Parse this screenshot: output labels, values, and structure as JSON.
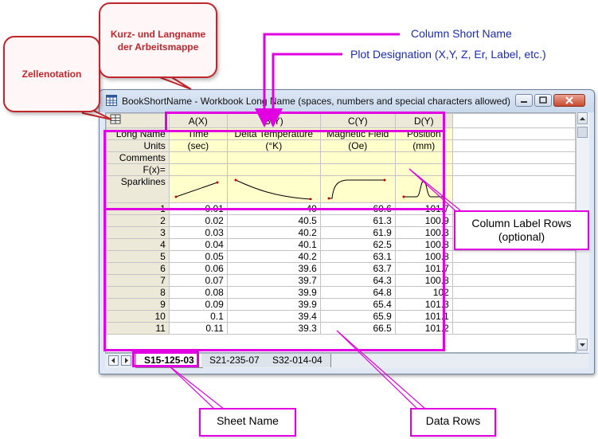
{
  "window": {
    "title": "BookShortName - Workbook Long Name (spaces, numbers and special characters allowed)"
  },
  "grid": {
    "columns": [
      {
        "short_name": "A(X)",
        "long_name": "Time",
        "units": "(sec)"
      },
      {
        "short_name": "B(Y)",
        "long_name": "Delta Temperature",
        "units": "(°K)"
      },
      {
        "short_name": "C(Y)",
        "long_name": "Magnetic Field",
        "units": "(Oe)"
      },
      {
        "short_name": "D(Y)",
        "long_name": "Position",
        "units": "(mm)"
      }
    ],
    "label_rows": [
      "Long Name",
      "Units",
      "Comments",
      "F(x)=",
      "Sparklines"
    ],
    "rows": [
      {
        "n": "1",
        "a": "0.01",
        "b": "40",
        "c": "60.6",
        "d": "101.7"
      },
      {
        "n": "2",
        "a": "0.02",
        "b": "40.5",
        "c": "61.3",
        "d": "100.9"
      },
      {
        "n": "3",
        "a": "0.03",
        "b": "40.2",
        "c": "61.9",
        "d": "100.3"
      },
      {
        "n": "4",
        "a": "0.04",
        "b": "40.1",
        "c": "62.5",
        "d": "100.8"
      },
      {
        "n": "5",
        "a": "0.05",
        "b": "40.2",
        "c": "63.1",
        "d": "100.8"
      },
      {
        "n": "6",
        "a": "0.06",
        "b": "39.6",
        "c": "63.7",
        "d": "101.7"
      },
      {
        "n": "7",
        "a": "0.07",
        "b": "39.7",
        "c": "64.3",
        "d": "100.8"
      },
      {
        "n": "8",
        "a": "0.08",
        "b": "39.9",
        "c": "64.8",
        "d": "102"
      },
      {
        "n": "9",
        "a": "0.09",
        "b": "39.9",
        "c": "65.4",
        "d": "101.3"
      },
      {
        "n": "10",
        "a": "0.1",
        "b": "39.4",
        "c": "65.9",
        "d": "101.1"
      },
      {
        "n": "11",
        "a": "0.11",
        "b": "39.3",
        "c": "66.5",
        "d": "101.2"
      }
    ]
  },
  "sheet_tabs": [
    "S15-125-03",
    "S21-235-07",
    "S32-014-04"
  ],
  "callouts": {
    "zellenotation": "Zellenotation",
    "book_name": "Kurz- und Langname der Arbeitsmappe",
    "column_short_name": "Column Short Name",
    "plot_designation": "Plot Designation (X,Y, Z, Er, Label, etc.)",
    "column_label_rows": "Column Label Rows (optional)",
    "sheet_name": "Sheet Name",
    "data_rows": "Data Rows"
  },
  "colors": {
    "highlight": "#e100e1",
    "callout_red": "#c0262c",
    "callout_blue_text": "#1a2bb5",
    "label_row_bg": "#ffffcc",
    "sparkline_red": "#cc0000"
  }
}
